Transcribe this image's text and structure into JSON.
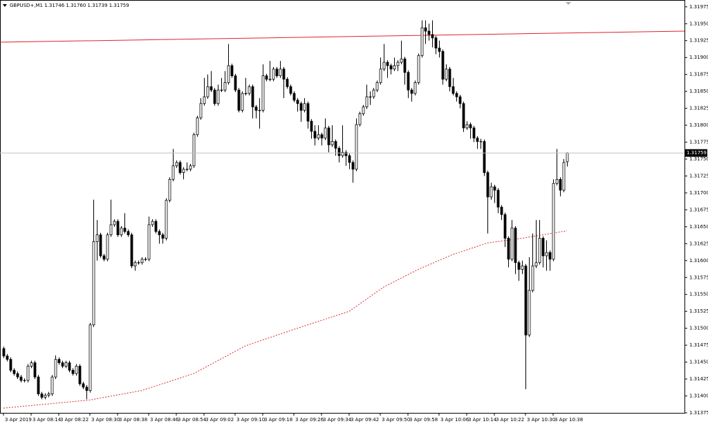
{
  "chart_data": {
    "type": "candlestick",
    "title": "GBPUSD+,M1  1.31746 1.31760 1.31739 1.31759",
    "ylim": [
      1.31375,
      1.31984
    ],
    "yticks": [
      1.31375,
      {
        "value": 1.314,
        "label": "1.31400"
      },
      1.31425,
      {
        "value": 1.3145,
        "label": "1.31450"
      },
      1.31475,
      {
        "value": 1.315,
        "label": "1.31500"
      },
      1.31525,
      {
        "value": 1.3155,
        "label": "1.31550"
      },
      1.31575,
      {
        "value": 1.316,
        "label": "1.31600"
      },
      1.31625,
      {
        "value": 1.3165,
        "label": "1.31650"
      },
      1.31675,
      {
        "value": 1.317,
        "label": "1.31700"
      },
      1.31725,
      {
        "value": 1.3175,
        "label": "1.31750"
      },
      1.31775,
      {
        "value": 1.318,
        "label": "1.31800"
      },
      1.31825,
      {
        "value": 1.3185,
        "label": "1.31850"
      },
      1.31875,
      {
        "value": 1.319,
        "label": "1.31900"
      },
      1.31925,
      {
        "value": 1.3195,
        "label": "1.31950"
      },
      1.31975
    ],
    "xlim": [
      -1,
      197
    ],
    "xticks": [
      {
        "value": 0,
        "label": "3 Apr 2019"
      },
      {
        "value": 8,
        "label": "3 Apr 08:14"
      },
      {
        "value": 16,
        "label": "3 Apr 08:22"
      },
      {
        "value": 25,
        "label": "3 Apr 08:30"
      },
      {
        "value": 33,
        "label": "3 Apr 08:38"
      },
      {
        "value": 42,
        "label": "3 Apr 08:46"
      },
      {
        "value": 50,
        "label": "3 Apr 08:54"
      },
      {
        "value": 58,
        "label": "3 Apr 09:02"
      },
      {
        "value": 67,
        "label": "3 Apr 09:10"
      },
      {
        "value": 75,
        "label": "3 Apr 09:18"
      },
      {
        "value": 84,
        "label": "3 Apr 09:26"
      },
      {
        "value": 92,
        "label": "3 Apr 09:34"
      },
      {
        "value": 100,
        "label": "3 Apr 09:42"
      },
      {
        "value": 109,
        "label": "3 Apr 09:50"
      },
      {
        "value": 117,
        "label": "3 Apr 09:58"
      },
      {
        "value": 126,
        "label": "3 Apr 10:06"
      },
      {
        "value": 134,
        "label": "3 Apr 10:14"
      },
      {
        "value": 142,
        "label": "3 Apr 10:22"
      },
      {
        "value": 151,
        "label": "3 Apr 10:30"
      },
      {
        "value": 159,
        "label": "3 Apr 10:38"
      }
    ],
    "current_price": 1.31759,
    "ohlc": [
      [
        1.3147,
        1.31473,
        1.31456,
        1.31459
      ],
      [
        1.31459,
        1.31462,
        1.31451,
        1.31454
      ],
      [
        1.31454,
        1.31457,
        1.31435,
        1.31438
      ],
      [
        1.31438,
        1.31441,
        1.3143,
        1.31433
      ],
      [
        1.31433,
        1.31436,
        1.31425,
        1.31428
      ],
      [
        1.31428,
        1.31431,
        1.3142,
        1.31423
      ],
      [
        1.31423,
        1.31426,
        1.3142,
        1.31423
      ],
      [
        1.31423,
        1.31447,
        1.3142,
        1.31444
      ],
      [
        1.31444,
        1.31452,
        1.31441,
        1.31449
      ],
      [
        1.31449,
        1.31452,
        1.31425,
        1.31428
      ],
      [
        1.31428,
        1.31431,
        1.314,
        1.31403
      ],
      [
        1.31403,
        1.31406,
        1.31395,
        1.31398
      ],
      [
        1.31398,
        1.31404,
        1.31395,
        1.31401
      ],
      [
        1.31401,
        1.31406,
        1.31398,
        1.31403
      ],
      [
        1.31403,
        1.31431,
        1.314,
        1.31428
      ],
      [
        1.31428,
        1.3146,
        1.31425,
        1.31454
      ],
      [
        1.31454,
        1.31457,
        1.31446,
        1.31449
      ],
      [
        1.31449,
        1.31452,
        1.31441,
        1.31444
      ],
      [
        1.31444,
        1.31452,
        1.31441,
        1.31449
      ],
      [
        1.31449,
        1.31452,
        1.31435,
        1.31438
      ],
      [
        1.31438,
        1.31441,
        1.3143,
        1.31433
      ],
      [
        1.31433,
        1.31447,
        1.3143,
        1.31444
      ],
      [
        1.31444,
        1.31447,
        1.31415,
        1.31418
      ],
      [
        1.31418,
        1.31421,
        1.3141,
        1.31413
      ],
      [
        1.31413,
        1.31416,
        1.31395,
        1.31408
      ],
      [
        1.31408,
        1.31508,
        1.31405,
        1.31505
      ],
      [
        1.31505,
        1.3169,
        1.31502,
        1.31628
      ],
      [
        1.31628,
        1.3166,
        1.316,
        1.31638
      ],
      [
        1.31638,
        1.31641,
        1.31604,
        1.31607
      ],
      [
        1.31607,
        1.3161,
        1.31599,
        1.31602
      ],
      [
        1.31602,
        1.31641,
        1.31599,
        1.31638
      ],
      [
        1.31638,
        1.3169,
        1.31635,
        1.31653
      ],
      [
        1.31653,
        1.31661,
        1.3165,
        1.31658
      ],
      [
        1.31658,
        1.31661,
        1.31635,
        1.31638
      ],
      [
        1.31638,
        1.31651,
        1.31635,
        1.31648
      ],
      [
        1.31648,
        1.3167,
        1.3164,
        1.31643
      ],
      [
        1.31643,
        1.31646,
        1.31635,
        1.31638
      ],
      [
        1.31638,
        1.31641,
        1.31589,
        1.31592
      ],
      [
        1.31592,
        1.316,
        1.31585,
        1.31597
      ],
      [
        1.31597,
        1.316,
        1.31594,
        1.31597
      ],
      [
        1.31597,
        1.31605,
        1.31594,
        1.31602
      ],
      [
        1.31602,
        1.31605,
        1.31599,
        1.31602
      ],
      [
        1.31602,
        1.31665,
        1.31599,
        1.31653
      ],
      [
        1.31653,
        1.31661,
        1.3165,
        1.31658
      ],
      [
        1.31658,
        1.31661,
        1.3164,
        1.31643
      ],
      [
        1.31643,
        1.31646,
        1.31625,
        1.31638
      ],
      [
        1.31638,
        1.31641,
        1.31625,
        1.31633
      ],
      [
        1.31633,
        1.31692,
        1.3163,
        1.31689
      ],
      [
        1.31689,
        1.31723,
        1.31686,
        1.3172
      ],
      [
        1.3172,
        1.31765,
        1.31717,
        1.3174
      ],
      [
        1.3174,
        1.31748,
        1.31737,
        1.31745
      ],
      [
        1.31745,
        1.31748,
        1.31727,
        1.3173
      ],
      [
        1.3173,
        1.31738,
        1.3172,
        1.31735
      ],
      [
        1.31735,
        1.31745,
        1.31732,
        1.31735
      ],
      [
        1.31735,
        1.31743,
        1.31732,
        1.3174
      ],
      [
        1.3174,
        1.31789,
        1.31737,
        1.31786
      ],
      [
        1.31786,
        1.31814,
        1.31783,
        1.31811
      ],
      [
        1.31811,
        1.3184,
        1.31808,
        1.31832
      ],
      [
        1.31832,
        1.3187,
        1.31829,
        1.31842
      ],
      [
        1.31842,
        1.31875,
        1.31839,
        1.31857
      ],
      [
        1.31857,
        1.3188,
        1.31849,
        1.31852
      ],
      [
        1.31852,
        1.31855,
        1.31829,
        1.31832
      ],
      [
        1.31832,
        1.3186,
        1.31829,
        1.31852
      ],
      [
        1.31852,
        1.3187,
        1.31849,
        1.31852
      ],
      [
        1.31852,
        1.3188,
        1.31849,
        1.31863
      ],
      [
        1.31863,
        1.3192,
        1.3186,
        1.31888
      ],
      [
        1.31888,
        1.31891,
        1.3187,
        1.31873
      ],
      [
        1.31873,
        1.31876,
        1.31849,
        1.31852
      ],
      [
        1.31852,
        1.31855,
        1.31819,
        1.31822
      ],
      [
        1.31822,
        1.3185,
        1.31819,
        1.31847
      ],
      [
        1.31847,
        1.3187,
        1.31844,
        1.31847
      ],
      [
        1.31847,
        1.3186,
        1.31844,
        1.31857
      ],
      [
        1.31857,
        1.3186,
        1.3181,
        1.31827
      ],
      [
        1.31827,
        1.3183,
        1.3181,
        1.31822
      ],
      [
        1.31822,
        1.3184,
        1.31795,
        1.31822
      ],
      [
        1.31822,
        1.3189,
        1.31819,
        1.31873
      ],
      [
        1.31873,
        1.31876,
        1.31865,
        1.31868
      ],
      [
        1.31868,
        1.31895,
        1.31865,
        1.31868
      ],
      [
        1.31868,
        1.31886,
        1.31865,
        1.31883
      ],
      [
        1.31883,
        1.31886,
        1.3187,
        1.31873
      ],
      [
        1.31873,
        1.31895,
        1.3187,
        1.31883
      ],
      [
        1.31883,
        1.31886,
        1.3184,
        1.31868
      ],
      [
        1.31868,
        1.31871,
        1.31854,
        1.31857
      ],
      [
        1.31857,
        1.3186,
        1.31844,
        1.31847
      ],
      [
        1.31847,
        1.3185,
        1.31834,
        1.31837
      ],
      [
        1.31837,
        1.3184,
        1.3182,
        1.31832
      ],
      [
        1.31832,
        1.31835,
        1.31805,
        1.31822
      ],
      [
        1.31822,
        1.3184,
        1.31819,
        1.31832
      ],
      [
        1.31832,
        1.31835,
        1.31795,
        1.31806
      ],
      [
        1.31806,
        1.31809,
        1.3178,
        1.31791
      ],
      [
        1.31791,
        1.318,
        1.3177,
        1.31781
      ],
      [
        1.31781,
        1.318,
        1.31778,
        1.31786
      ],
      [
        1.31786,
        1.31789,
        1.3177,
        1.31781
      ],
      [
        1.31781,
        1.3181,
        1.31778,
        1.31796
      ],
      [
        1.31796,
        1.31799,
        1.3176,
        1.31771
      ],
      [
        1.31771,
        1.318,
        1.31768,
        1.31776
      ],
      [
        1.31776,
        1.31779,
        1.31755,
        1.31766
      ],
      [
        1.31766,
        1.31769,
        1.31745,
        1.31755
      ],
      [
        1.31755,
        1.318,
        1.31752,
        1.3176
      ],
      [
        1.3176,
        1.31763,
        1.3174,
        1.31755
      ],
      [
        1.31755,
        1.31758,
        1.31735,
        1.31745
      ],
      [
        1.31745,
        1.31748,
        1.31715,
        1.31735
      ],
      [
        1.31735,
        1.3181,
        1.31732,
        1.31801
      ],
      [
        1.31801,
        1.3182,
        1.31798,
        1.31817
      ],
      [
        1.31817,
        1.3183,
        1.31814,
        1.31827
      ],
      [
        1.31827,
        1.3186,
        1.31824,
        1.31842
      ],
      [
        1.31842,
        1.3185,
        1.3183,
        1.31842
      ],
      [
        1.31842,
        1.31855,
        1.31839,
        1.31852
      ],
      [
        1.31852,
        1.31866,
        1.31849,
        1.31863
      ],
      [
        1.31863,
        1.319,
        1.3186,
        1.31883
      ],
      [
        1.31883,
        1.3192,
        1.3188,
        1.31893
      ],
      [
        1.31893,
        1.31896,
        1.3187,
        1.31888
      ],
      [
        1.31888,
        1.31891,
        1.31875,
        1.31883
      ],
      [
        1.31883,
        1.319,
        1.3188,
        1.31888
      ],
      [
        1.31888,
        1.31896,
        1.3188,
        1.31893
      ],
      [
        1.31893,
        1.31925,
        1.3189,
        1.31898
      ],
      [
        1.31898,
        1.31901,
        1.3186,
        1.31878
      ],
      [
        1.31878,
        1.31881,
        1.3184,
        1.31852
      ],
      [
        1.31852,
        1.31855,
        1.31835,
        1.31847
      ],
      [
        1.31847,
        1.31866,
        1.31844,
        1.31863
      ],
      [
        1.31863,
        1.31906,
        1.3186,
        1.31903
      ],
      [
        1.31903,
        1.31955,
        1.319,
        1.31944
      ],
      [
        1.31944,
        1.31955,
        1.3192,
        1.31939
      ],
      [
        1.31939,
        1.3195,
        1.31925,
        1.31934
      ],
      [
        1.31934,
        1.31955,
        1.31915,
        1.31929
      ],
      [
        1.31929,
        1.31932,
        1.31905,
        1.31914
      ],
      [
        1.31914,
        1.31925,
        1.319,
        1.31909
      ],
      [
        1.31909,
        1.31912,
        1.3186,
        1.31868
      ],
      [
        1.31868,
        1.3189,
        1.31865,
        1.31883
      ],
      [
        1.31883,
        1.31886,
        1.3185,
        1.31857
      ],
      [
        1.31857,
        1.3187,
        1.31844,
        1.31847
      ],
      [
        1.31847,
        1.3185,
        1.31835,
        1.31842
      ],
      [
        1.31842,
        1.31845,
        1.31825,
        1.31832
      ],
      [
        1.31832,
        1.31835,
        1.3179,
        1.31796
      ],
      [
        1.31796,
        1.31806,
        1.31793,
        1.31801
      ],
      [
        1.31801,
        1.31804,
        1.3178,
        1.31796
      ],
      [
        1.31796,
        1.31799,
        1.31775,
        1.31781
      ],
      [
        1.31781,
        1.31784,
        1.31765,
        1.31776
      ],
      [
        1.31776,
        1.3178,
        1.31765,
        1.31776
      ],
      [
        1.31776,
        1.31779,
        1.31725,
        1.3173
      ],
      [
        1.3173,
        1.31733,
        1.3164,
        1.31694
      ],
      [
        1.31694,
        1.31715,
        1.3169,
        1.31709
      ],
      [
        1.31709,
        1.31712,
        1.31685,
        1.31704
      ],
      [
        1.31704,
        1.31707,
        1.3167,
        1.31679
      ],
      [
        1.31679,
        1.31682,
        1.3166,
        1.31668
      ],
      [
        1.31668,
        1.31671,
        1.3162,
        1.31633
      ],
      [
        1.31633,
        1.31636,
        1.3159,
        1.31602
      ],
      [
        1.31602,
        1.3166,
        1.31599,
        1.31648
      ],
      [
        1.31648,
        1.31651,
        1.3158,
        1.31597
      ],
      [
        1.31597,
        1.316,
        1.3157,
        1.31587
      ],
      [
        1.31587,
        1.316,
        1.3158,
        1.31592
      ],
      [
        1.31592,
        1.31595,
        1.3141,
        1.3149
      ],
      [
        1.3149,
        1.31605,
        1.31487,
        1.31556
      ],
      [
        1.31556,
        1.3164,
        1.31553,
        1.31592
      ],
      [
        1.31592,
        1.3166,
        1.31589,
        1.31597
      ],
      [
        1.31597,
        1.3166,
        1.31594,
        1.31633
      ],
      [
        1.31633,
        1.31636,
        1.3159,
        1.31607
      ],
      [
        1.31607,
        1.3163,
        1.31585,
        1.31612
      ],
      [
        1.31612,
        1.31615,
        1.31585,
        1.31602
      ],
      [
        1.31602,
        1.3172,
        1.31599,
        1.31714
      ],
      [
        1.31714,
        1.31765,
        1.31711,
        1.3172
      ],
      [
        1.3172,
        1.31723,
        1.31695,
        1.31704
      ],
      [
        1.31704,
        1.3175,
        1.31701,
        1.31745
      ],
      [
        1.31746,
        1.3176,
        1.31739,
        1.31759
      ]
    ],
    "series": [
      {
        "color": "#d9282f",
        "x": [
          0,
          25,
          40,
          55,
          70,
          85,
          100,
          110,
          120,
          130,
          140,
          150,
          163
        ],
        "values": [
          1.31382,
          1.31394,
          1.31408,
          1.31433,
          1.31474,
          1.315,
          1.31525,
          1.31561,
          1.31587,
          1.31609,
          1.31626,
          1.31633,
          1.31644
        ]
      }
    ]
  }
}
